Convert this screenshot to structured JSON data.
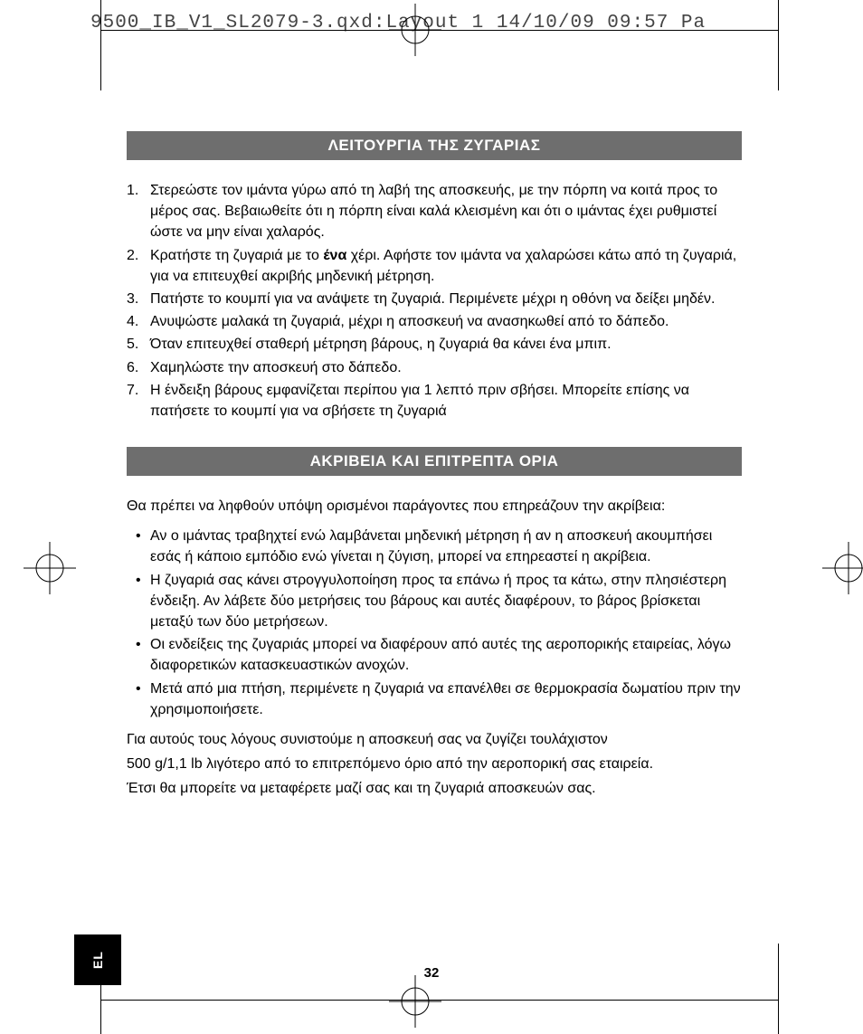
{
  "header": {
    "filename": "9500_IB_V1_SL2079-3.qxd:Layout 1  14/10/09  09:57  Pa"
  },
  "section1": {
    "title": "ΛΕΙΤΟΥΡΓΙΑ ΤΗΣ ΖΥΓΑΡΙΑΣ",
    "items": [
      "Στερεώστε τον ιμάντα γύρω από τη λαβή της αποσκευής, με την πόρπη να κοιτά προς το μέρος σας. Βεβαιωθείτε ότι η πόρπη είναι καλά κλεισμένη και ότι ο ιμάντας έχει ρυθμιστεί ώστε να μην είναι χαλαρός.",
      "Κρατήστε τη ζυγαριά με το |b|ένα|/b| χέρι. Αφήστε τον ιμάντα να χαλαρώσει κάτω από τη ζυγαριά, για να επιτευχθεί ακριβής μηδενική μέτρηση.",
      "Πατήστε το κουμπί για να ανάψετε τη ζυγαριά. Περιμένετε μέχρι η οθόνη να δείξει μηδέν.",
      "Ανυψώστε μαλακά τη ζυγαριά, μέχρι η αποσκευή να ανασηκωθεί από το δάπεδο.",
      "Όταν επιτευχθεί σταθερή μέτρηση βάρους, η ζυγαριά θα κάνει ένα μπιπ.",
      "Χαμηλώστε την αποσκευή στο δάπεδο.",
      "Η ένδειξη βάρους εμφανίζεται περίπου για 1 λεπτό πριν σβήσει. Μπορείτε επίσης να πατήσετε το κουμπί για να σβήσετε τη ζυγαριά"
    ]
  },
  "section2": {
    "title": "ΑΚΡΙΒΕΙΑ ΚΑΙ ΕΠΙΤΡΕΠΤΑ ΟΡΙΑ",
    "intro": "Θα πρέπει να ληφθούν υπόψη ορισμένοι παράγοντες που επηρεάζουν την ακρίβεια:",
    "bullets": [
      "Αν ο ιμάντας τραβηχτεί ενώ λαμβάνεται μηδενική μέτρηση ή αν η αποσκευή ακουμπήσει εσάς ή κάποιο εμπόδιο ενώ γίνεται η ζύγιση, μπορεί να επηρεαστεί η ακρίβεια.",
      "Η ζυγαριά σας κάνει στρογγυλοποίηση προς τα επάνω ή προς τα κάτω, στην πλησιέστερη ένδειξη. Αν λάβετε δύο μετρήσεις του βάρους και αυτές διαφέρουν, το βάρος βρίσκεται μεταξύ των δύο μετρήσεων.",
      "Οι ενδείξεις της ζυγαριάς μπορεί να διαφέρουν από αυτές της αεροπορικής εταιρείας, λόγω διαφορετικών κατασκευαστικών ανοχών.",
      "Μετά από μια πτήση, περιμένετε η ζυγαριά να επανέλθει σε θερμοκρασία δωματίου πριν την χρησιμοποιήσετε."
    ],
    "outro": [
      "Για αυτούς τους λόγους συνιστούμε η αποσκευή σας να ζυγίζει τουλάχιστον",
      "500 g/1,1 lb λιγότερο από το επιτρεπόμενο όριο από την αεροπορική σας εταιρεία.",
      "Έτσι θα μπορείτε να μεταφέρετε μαζί σας και τη ζυγαριά αποσκευών σας."
    ]
  },
  "page_number": "32",
  "lang_tab": "EL",
  "colors": {
    "header_bg": "#6e6e6e",
    "header_fg": "#ffffff",
    "text": "#000000",
    "tab_bg": "#000000"
  }
}
